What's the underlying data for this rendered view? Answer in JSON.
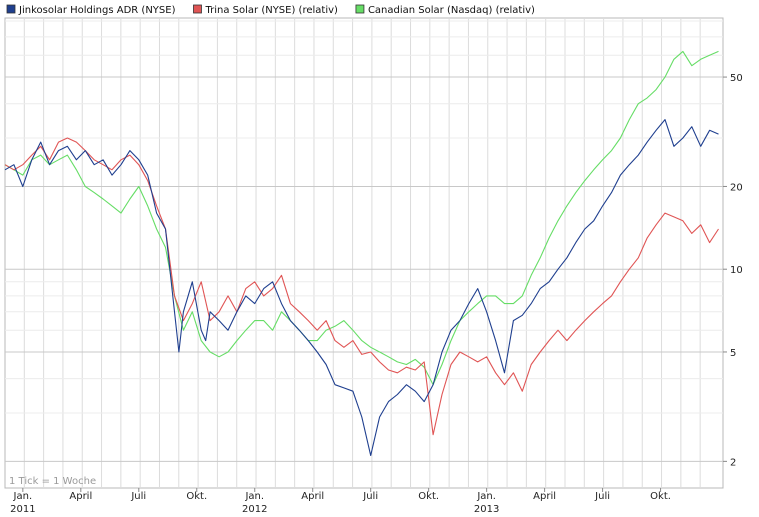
{
  "chart_data": {
    "type": "line",
    "scale": "log",
    "ylim": [
      1.6,
      82
    ],
    "y_ticks": [
      "2",
      "5",
      "10",
      "20",
      "50"
    ],
    "x_ticks": [
      {
        "label": "Jan.",
        "x": 0
      },
      {
        "label": "April",
        "x": 13
      },
      {
        "label": "Juli",
        "x": 26
      },
      {
        "label": "Okt.",
        "x": 39
      },
      {
        "label": "Jan.",
        "x": 52
      },
      {
        "label": "April",
        "x": 65
      },
      {
        "label": "Juli",
        "x": 78
      },
      {
        "label": "Okt.",
        "x": 91
      },
      {
        "label": "Jan.",
        "x": 104
      },
      {
        "label": "April",
        "x": 117
      },
      {
        "label": "Juli",
        "x": 130
      },
      {
        "label": "Okt.",
        "x": 143
      }
    ],
    "year_labels": [
      {
        "label": "2011",
        "x": 0
      },
      {
        "label": "2012",
        "x": 52
      },
      {
        "label": "2013",
        "x": 104
      }
    ],
    "xlim": [
      -4,
      157
    ],
    "footnote": "1 Tick = 1 Woche",
    "series": [
      {
        "name": "Jinkosolar Holdings ADR (NYSE)",
        "color": "#1f3f8f",
        "x": [
          -4,
          -2,
          0,
          2,
          4,
          6,
          8,
          10,
          12,
          14,
          16,
          18,
          20,
          22,
          24,
          26,
          28,
          30,
          32,
          34,
          35,
          36,
          38,
          40,
          41,
          42,
          44,
          46,
          48,
          50,
          52,
          54,
          56,
          58,
          60,
          62,
          64,
          66,
          68,
          70,
          72,
          74,
          76,
          78,
          80,
          82,
          84,
          86,
          88,
          90,
          92,
          94,
          96,
          98,
          100,
          102,
          104,
          106,
          108,
          110,
          112,
          114,
          116,
          118,
          120,
          122,
          124,
          126,
          128,
          130,
          132,
          134,
          136,
          138,
          140,
          142,
          144,
          146,
          148,
          150,
          152,
          154,
          156
        ],
        "values": [
          23,
          24,
          20,
          25,
          29,
          24,
          27,
          28,
          25,
          27,
          24,
          25,
          22,
          24,
          27,
          25,
          22,
          16,
          14,
          7,
          5,
          7,
          9,
          6,
          5.5,
          7,
          6.5,
          6,
          7,
          8,
          7.5,
          8.5,
          9,
          7.5,
          6.5,
          6,
          5.5,
          5,
          4.5,
          3.8,
          3.7,
          3.6,
          2.9,
          2.1,
          2.9,
          3.3,
          3.5,
          3.8,
          3.6,
          3.3,
          3.8,
          5,
          6,
          6.5,
          7.5,
          8.5,
          7,
          5.5,
          4.2,
          6.5,
          6.8,
          7.5,
          8.5,
          9,
          10,
          11,
          12.5,
          14,
          15,
          17,
          19,
          22,
          24,
          26,
          29,
          32,
          35,
          28,
          30,
          33,
          28,
          32,
          31
        ]
      },
      {
        "name": "Trina Solar (NYSE) (relativ)",
        "color": "#e05555",
        "x": [
          -4,
          -2,
          0,
          2,
          4,
          6,
          8,
          10,
          12,
          14,
          16,
          18,
          20,
          22,
          24,
          26,
          28,
          30,
          32,
          34,
          36,
          38,
          40,
          42,
          44,
          46,
          48,
          50,
          52,
          54,
          56,
          58,
          60,
          62,
          64,
          66,
          68,
          70,
          72,
          74,
          76,
          78,
          80,
          82,
          84,
          86,
          88,
          90,
          92,
          94,
          96,
          98,
          100,
          102,
          104,
          106,
          108,
          110,
          112,
          114,
          116,
          118,
          120,
          122,
          124,
          126,
          128,
          130,
          132,
          134,
          136,
          138,
          140,
          142,
          144,
          146,
          148,
          150,
          152,
          154,
          156
        ],
        "values": [
          24,
          23,
          24,
          26,
          28,
          25,
          29,
          30,
          29,
          27,
          25,
          24,
          23,
          25,
          26,
          24,
          21,
          17,
          14,
          8,
          6.5,
          7.5,
          9,
          6.5,
          7,
          8,
          7,
          8.5,
          9,
          8,
          8.5,
          9.5,
          7.5,
          7,
          6.5,
          6,
          6.5,
          5.5,
          5.2,
          5.5,
          4.9,
          5,
          4.6,
          4.3,
          4.2,
          4.4,
          4.3,
          4.6,
          2.5,
          3.5,
          4.5,
          5,
          4.8,
          4.6,
          4.8,
          4.2,
          3.8,
          4.2,
          3.6,
          4.5,
          5,
          5.5,
          6,
          5.5,
          6,
          6.5,
          7,
          7.5,
          8,
          9,
          10,
          11,
          13,
          14.5,
          16,
          15.5,
          15,
          13.5,
          14.5,
          12.5,
          14
        ]
      },
      {
        "name": "Canadian Solar (Nasdaq) (relativ)",
        "color": "#66dd66",
        "x": [
          -4,
          -2,
          0,
          2,
          4,
          6,
          8,
          10,
          12,
          14,
          16,
          18,
          20,
          22,
          24,
          26,
          28,
          30,
          32,
          34,
          36,
          38,
          40,
          42,
          44,
          46,
          48,
          50,
          52,
          54,
          56,
          58,
          60,
          62,
          64,
          66,
          68,
          70,
          72,
          74,
          76,
          78,
          80,
          82,
          84,
          86,
          88,
          90,
          92,
          94,
          96,
          98,
          100,
          102,
          104,
          106,
          108,
          110,
          112,
          114,
          116,
          118,
          120,
          122,
          124,
          126,
          128,
          130,
          132,
          134,
          136,
          138,
          140,
          142,
          144,
          146,
          148,
          150,
          152,
          154,
          156
        ],
        "values": [
          24,
          23,
          22,
          25,
          26,
          24,
          25,
          26,
          23,
          20,
          19,
          18,
          17,
          16,
          18,
          20,
          17,
          14,
          12,
          8,
          6,
          7,
          5.5,
          5,
          4.8,
          5,
          5.5,
          6,
          6.5,
          6.5,
          6,
          7,
          6.5,
          6,
          5.5,
          5.5,
          6,
          6.2,
          6.5,
          6,
          5.5,
          5.2,
          5,
          4.8,
          4.6,
          4.5,
          4.7,
          4.4,
          3.8,
          4.5,
          5.5,
          6.5,
          7,
          7.5,
          8,
          8,
          7.5,
          7.5,
          8,
          9.5,
          11,
          13,
          15,
          17,
          19,
          21,
          23,
          25,
          27,
          30,
          35,
          40,
          42,
          45,
          50,
          58,
          62,
          55,
          58,
          60,
          62
        ]
      }
    ]
  }
}
